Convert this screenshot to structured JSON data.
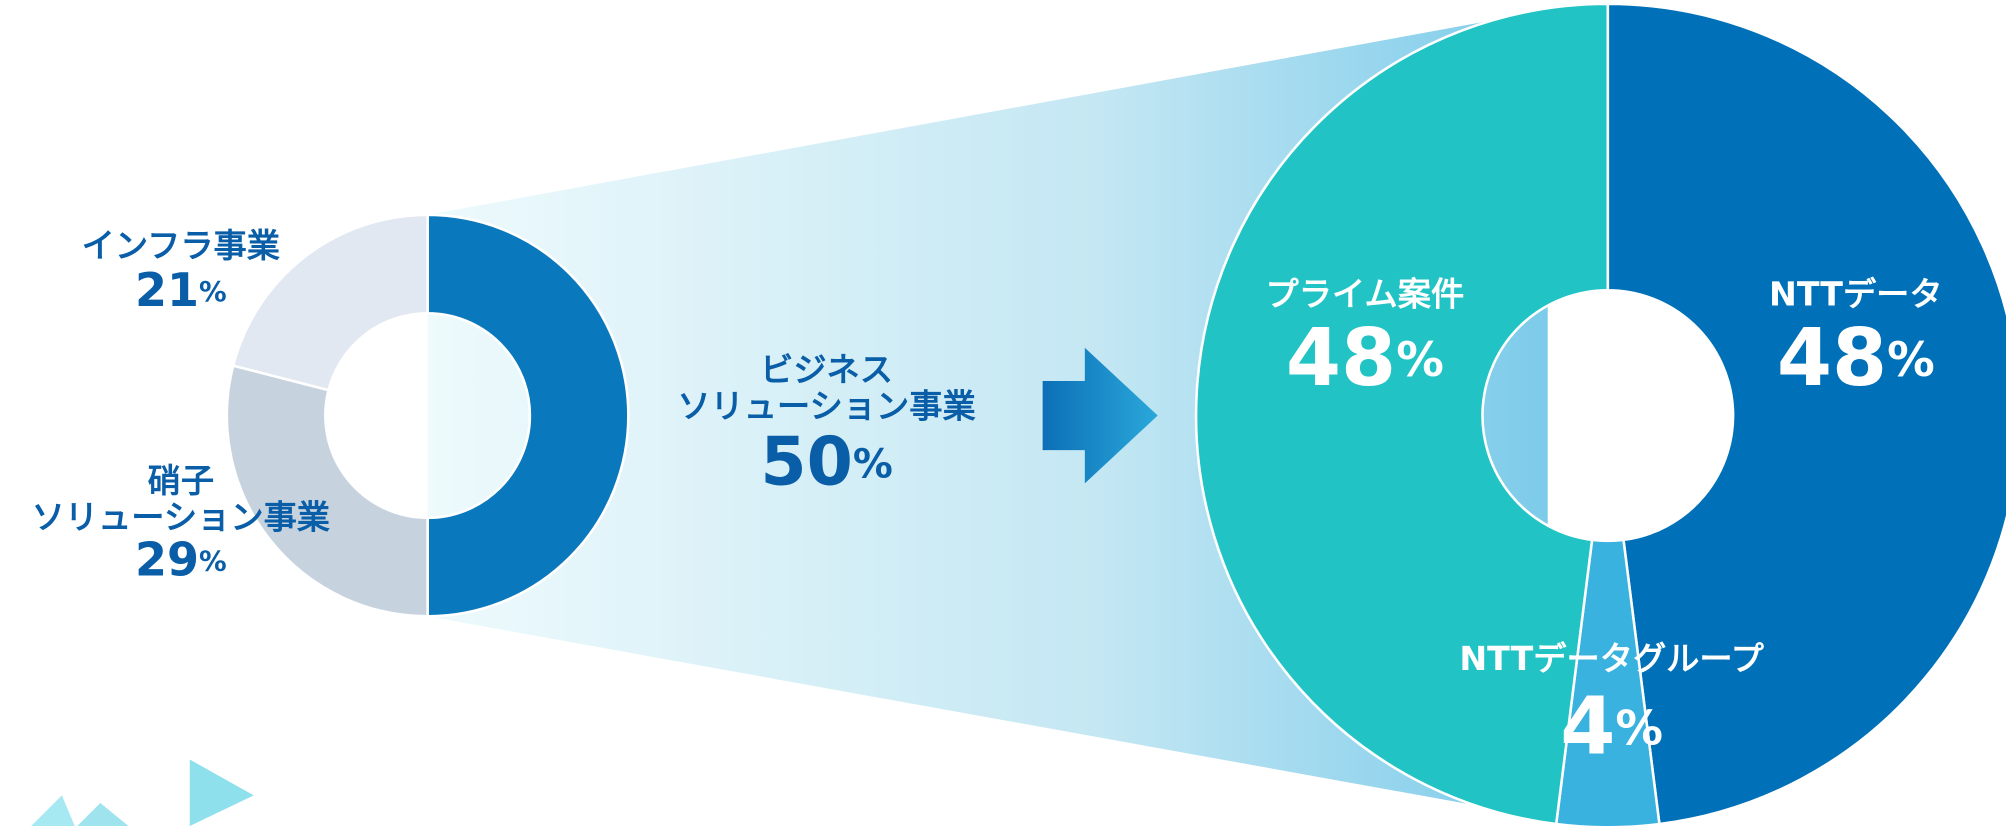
{
  "chart_data": [
    {
      "type": "donut",
      "categories": [
        "ビジネス\nソリューション事業",
        "硝子\nソリューション事業",
        "インフラ事業"
      ],
      "values": [
        50,
        29,
        21
      ],
      "value_labels": [
        "50%",
        "29%",
        "21%"
      ],
      "colors": [
        "#0a78bd",
        "#c6d3df",
        "#e2e8f1"
      ]
    },
    {
      "type": "donut",
      "categories": [
        "NTTデータ",
        "NTTデータグループ",
        "プライム案件"
      ],
      "values": [
        48,
        4,
        48
      ],
      "value_labels": [
        "48%",
        "4%",
        "48%"
      ],
      "colors": [
        "#0070b8",
        "#3ab2df",
        "#21c3c4"
      ]
    }
  ]
}
